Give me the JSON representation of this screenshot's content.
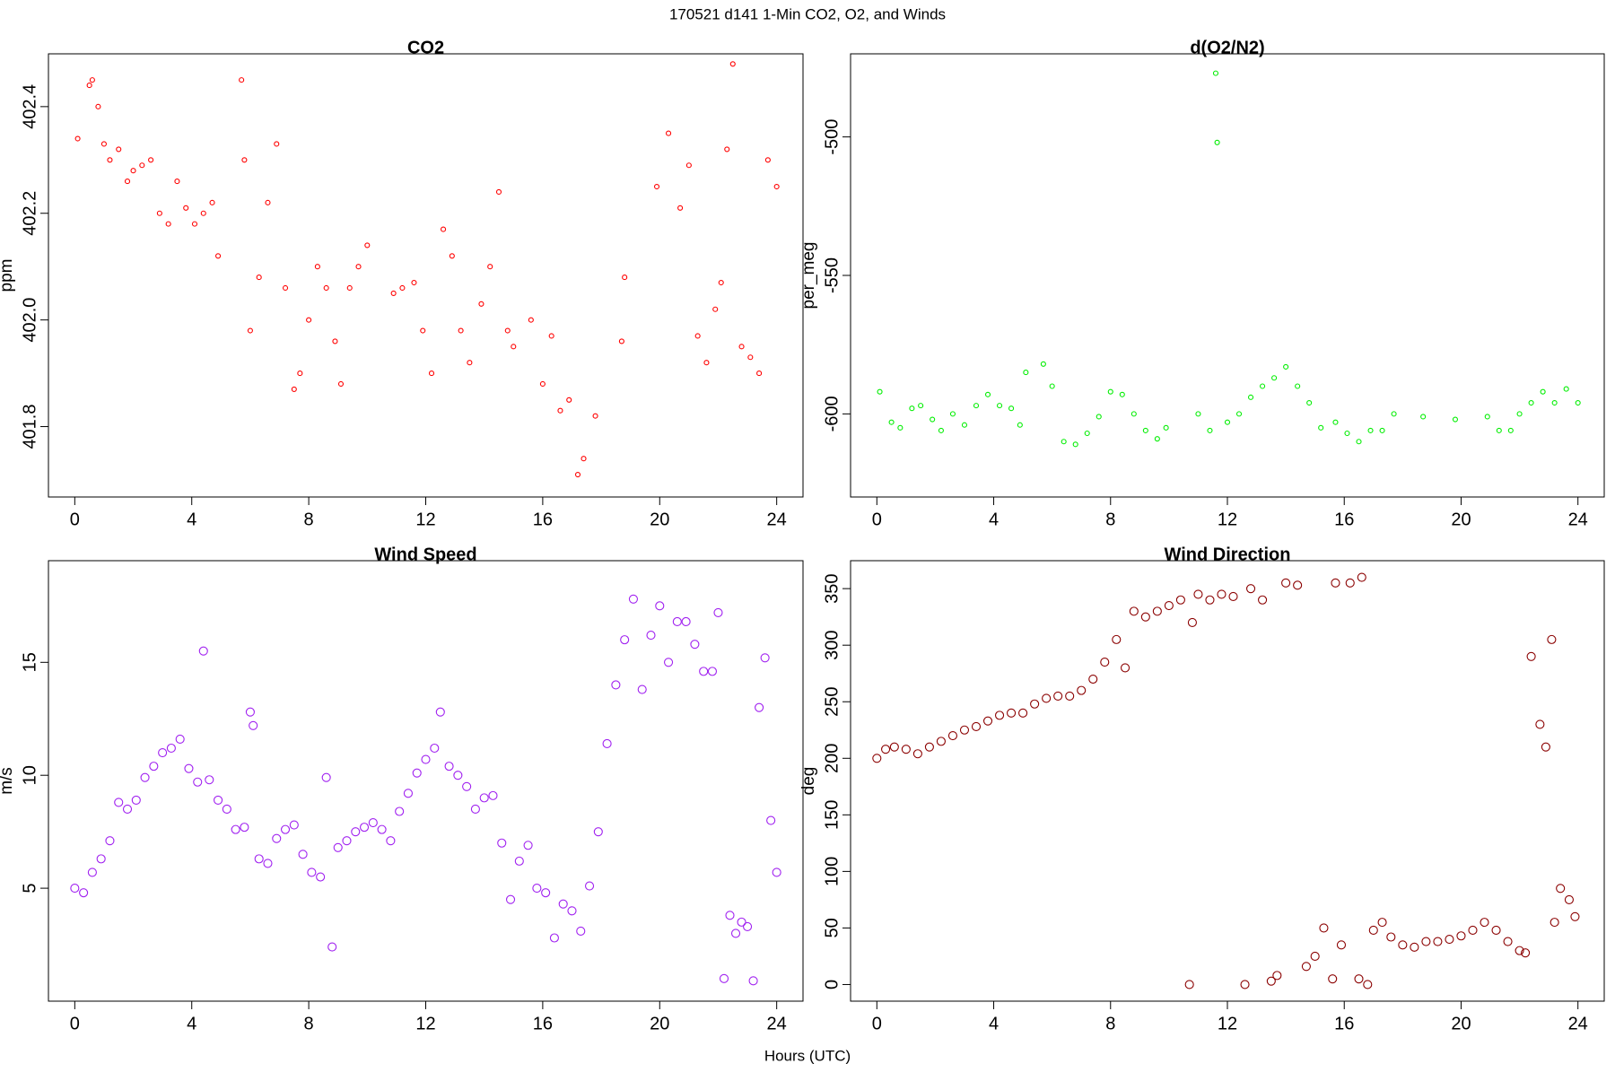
{
  "title": "170521   d141   1-Min CO2, O2, and Winds",
  "xlabel": "Hours (UTC)",
  "chart_data": [
    {
      "type": "scatter",
      "title": "CO2",
      "ylabel": "ppm",
      "color": "#ff0000",
      "xlim": [
        -0.9,
        24.9
      ],
      "xticks": [
        0,
        4,
        8,
        12,
        16,
        20,
        24
      ],
      "ylim": [
        401.668,
        402.499
      ],
      "yticks": [
        401.8,
        {
          "value": 402.0,
          "label": "402.0"
        },
        402.2,
        402.4
      ],
      "x": [
        0.1,
        0.5,
        0.6,
        0.8,
        1.0,
        1.2,
        1.5,
        1.8,
        2.0,
        2.3,
        2.6,
        2.9,
        3.2,
        3.5,
        3.8,
        4.1,
        4.4,
        4.7,
        4.9,
        5.7,
        5.8,
        6.0,
        6.3,
        6.6,
        6.9,
        7.2,
        7.5,
        7.7,
        8.0,
        8.3,
        8.6,
        8.9,
        9.1,
        9.4,
        9.7,
        10.0,
        10.9,
        11.2,
        11.6,
        11.9,
        12.2,
        12.6,
        12.9,
        13.2,
        13.5,
        13.9,
        14.2,
        14.5,
        14.8,
        15.0,
        15.6,
        16.0,
        16.3,
        16.6,
        16.9,
        17.2,
        17.4,
        17.8,
        18.7,
        18.8,
        19.9,
        20.3,
        20.7,
        21.0,
        21.3,
        21.6,
        21.9,
        22.1,
        22.3,
        22.5,
        22.8,
        23.1,
        23.4,
        23.7,
        24.0
      ],
      "values": [
        402.34,
        402.44,
        402.45,
        402.4,
        402.33,
        402.3,
        402.32,
        402.26,
        402.28,
        402.29,
        402.3,
        402.2,
        402.18,
        402.26,
        402.21,
        402.18,
        402.2,
        402.22,
        402.12,
        402.45,
        402.3,
        401.98,
        402.08,
        402.22,
        402.33,
        402.06,
        401.87,
        401.9,
        402.0,
        402.1,
        402.06,
        401.96,
        401.88,
        402.06,
        402.1,
        402.14,
        402.05,
        402.06,
        402.07,
        401.98,
        401.9,
        402.17,
        402.12,
        401.98,
        401.92,
        402.03,
        402.1,
        402.24,
        401.98,
        401.95,
        402.0,
        401.88,
        401.97,
        401.83,
        401.85,
        401.71,
        401.74,
        401.82,
        401.96,
        402.08,
        402.25,
        402.35,
        402.21,
        402.29,
        401.97,
        401.92,
        402.02,
        402.07,
        402.32,
        402.48,
        401.95,
        401.93,
        401.9,
        402.3,
        402.25
      ]
    },
    {
      "type": "scatter",
      "title": "d(O2/N2)",
      "ylabel": "per_meg",
      "color": "#00ee00",
      "xlim": [
        -0.9,
        24.9
      ],
      "xticks": [
        0,
        4,
        8,
        12,
        16,
        20,
        24
      ],
      "ylim": [
        -630,
        -470
      ],
      "yticks": [
        -600,
        -550,
        -500
      ],
      "x": [
        0.1,
        0.5,
        0.8,
        1.2,
        1.5,
        1.9,
        2.2,
        2.6,
        3.0,
        3.4,
        3.8,
        4.2,
        4.6,
        4.9,
        5.1,
        5.7,
        6.0,
        6.4,
        6.8,
        7.2,
        7.6,
        8.0,
        8.4,
        8.8,
        9.2,
        9.6,
        9.9,
        11.0,
        11.4,
        11.6,
        11.65,
        12.0,
        12.4,
        12.8,
        13.2,
        13.6,
        14.0,
        14.4,
        14.8,
        15.2,
        15.7,
        16.1,
        16.5,
        16.9,
        17.3,
        17.7,
        18.7,
        19.8,
        20.9,
        21.3,
        21.7,
        22.0,
        22.4,
        22.8,
        23.2,
        23.6,
        24.0
      ],
      "values": [
        -592,
        -603,
        -605,
        -598,
        -597,
        -602,
        -606,
        -600,
        -604,
        -597,
        -593,
        -597,
        -598,
        -604,
        -585,
        -582,
        -590,
        -610,
        -611,
        -607,
        -601,
        -592,
        -593,
        -600,
        -606,
        -609,
        -605,
        -600,
        -606,
        -477,
        -502,
        -603,
        -600,
        -594,
        -590,
        -587,
        -583,
        -590,
        -596,
        -605,
        -603,
        -607,
        -610,
        -606,
        -606,
        -600,
        -601,
        -602,
        -601,
        -606,
        -606,
        -600,
        -596,
        -592,
        -596,
        -591,
        -596
      ]
    },
    {
      "type": "scatter",
      "title": "Wind Speed",
      "ylabel": "m/s",
      "color": "#a020f0",
      "xlim": [
        -0.9,
        24.9
      ],
      "xticks": [
        0,
        4,
        8,
        12,
        16,
        20,
        24
      ],
      "ylim": [
        0,
        19.5
      ],
      "yticks": [
        5,
        10,
        15
      ],
      "x": [
        0.0,
        0.3,
        0.6,
        0.9,
        1.2,
        1.5,
        1.8,
        2.1,
        2.4,
        2.7,
        3.0,
        3.3,
        3.6,
        3.9,
        4.2,
        4.4,
        4.6,
        4.9,
        5.2,
        5.5,
        5.8,
        6.0,
        6.1,
        6.3,
        6.6,
        6.9,
        7.2,
        7.5,
        7.8,
        8.1,
        8.4,
        8.6,
        8.8,
        9.0,
        9.3,
        9.6,
        9.9,
        10.2,
        10.5,
        10.8,
        11.1,
        11.4,
        11.7,
        12.0,
        12.3,
        12.5,
        12.8,
        13.1,
        13.4,
        13.7,
        14.0,
        14.3,
        14.6,
        14.9,
        15.2,
        15.5,
        15.8,
        16.1,
        16.4,
        16.7,
        17.0,
        17.3,
        17.6,
        17.9,
        18.2,
        18.5,
        18.8,
        19.1,
        19.4,
        19.7,
        20.0,
        20.3,
        20.6,
        20.9,
        21.2,
        21.5,
        21.8,
        22.0,
        22.2,
        22.4,
        22.6,
        22.8,
        23.0,
        23.2,
        23.4,
        23.6,
        23.8,
        24.0
      ],
      "values": [
        5.0,
        4.8,
        5.7,
        6.3,
        7.1,
        8.8,
        8.5,
        8.9,
        9.9,
        10.4,
        11.0,
        11.2,
        11.6,
        10.3,
        9.7,
        15.5,
        9.8,
        8.9,
        8.5,
        7.6,
        7.7,
        12.8,
        12.2,
        6.3,
        6.1,
        7.2,
        7.6,
        7.8,
        6.5,
        5.7,
        5.5,
        9.9,
        2.4,
        6.8,
        7.1,
        7.5,
        7.7,
        7.9,
        7.6,
        7.1,
        8.4,
        9.2,
        10.1,
        10.7,
        11.2,
        12.8,
        10.4,
        10.0,
        9.5,
        8.5,
        9.0,
        9.1,
        7.0,
        4.5,
        6.2,
        6.9,
        5.0,
        4.8,
        2.8,
        4.3,
        4.0,
        3.1,
        5.1,
        7.5,
        11.4,
        14.0,
        16.0,
        17.8,
        13.8,
        16.2,
        17.5,
        15.0,
        16.8,
        16.8,
        15.8,
        14.6,
        14.6,
        17.2,
        1.0,
        3.8,
        3.0,
        3.5,
        3.3,
        0.9,
        13.0,
        15.2,
        8.0,
        5.7
      ]
    },
    {
      "type": "scatter",
      "title": "Wind Direction",
      "ylabel": "deg",
      "color": "#8b0000",
      "xlim": [
        -0.9,
        24.9
      ],
      "xticks": [
        0,
        4,
        8,
        12,
        16,
        20,
        24
      ],
      "ylim": [
        -14.7,
        374.7
      ],
      "yticks": [
        0,
        50,
        100,
        150,
        200,
        250,
        300,
        350
      ],
      "x": [
        0.0,
        0.3,
        0.6,
        1.0,
        1.4,
        1.8,
        2.2,
        2.6,
        3.0,
        3.4,
        3.8,
        4.2,
        4.6,
        5.0,
        5.4,
        5.8,
        6.2,
        6.6,
        7.0,
        7.4,
        7.8,
        8.2,
        8.5,
        8.8,
        9.2,
        9.6,
        10.0,
        10.4,
        10.7,
        10.8,
        11.0,
        11.4,
        11.8,
        12.2,
        12.6,
        12.8,
        13.2,
        13.5,
        13.7,
        14.0,
        14.4,
        14.7,
        15.0,
        15.3,
        15.6,
        15.7,
        15.9,
        16.2,
        16.5,
        16.6,
        16.8,
        17.0,
        17.3,
        17.6,
        18.0,
        18.4,
        18.8,
        19.2,
        19.6,
        20.0,
        20.4,
        20.8,
        21.2,
        21.6,
        22.0,
        22.2,
        22.4,
        22.7,
        22.9,
        23.1,
        23.2,
        23.4,
        23.7,
        23.9
      ],
      "values": [
        200,
        208,
        210,
        208,
        204,
        210,
        215,
        220,
        225,
        228,
        233,
        238,
        240,
        240,
        248,
        253,
        255,
        255,
        260,
        270,
        285,
        305,
        280,
        330,
        325,
        330,
        335,
        340,
        0,
        320,
        345,
        340,
        345,
        343,
        0,
        350,
        340,
        3,
        8,
        355,
        353,
        16,
        25,
        50,
        5,
        355,
        35,
        355,
        5,
        360,
        0,
        48,
        55,
        42,
        35,
        33,
        38,
        38,
        40,
        43,
        48,
        55,
        48,
        38,
        30,
        28,
        290,
        230,
        210,
        305,
        55,
        85,
        75,
        60
      ]
    }
  ]
}
